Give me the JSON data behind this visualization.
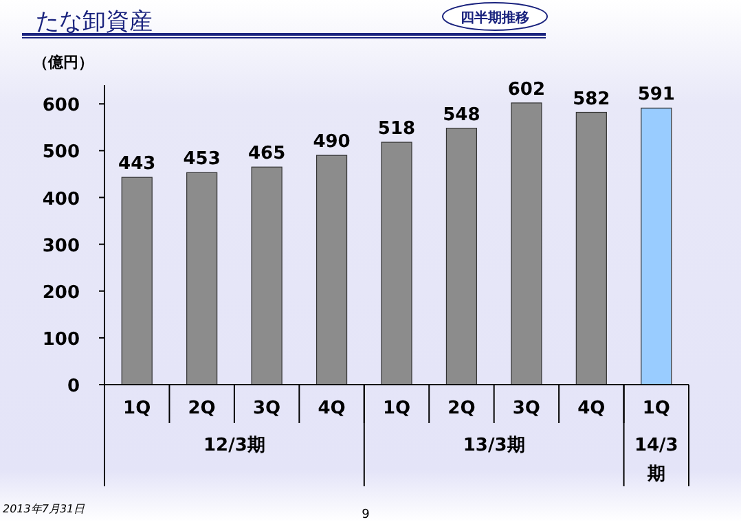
{
  "chart_data": {
    "type": "bar",
    "title": "たな卸資産",
    "subtitle": "四半期推移",
    "ylabel": "（億円）",
    "categories": [
      "1Q",
      "2Q",
      "3Q",
      "4Q",
      "1Q",
      "2Q",
      "3Q",
      "4Q",
      "1Q"
    ],
    "values": [
      443,
      453,
      465,
      490,
      518,
      548,
      602,
      582,
      591
    ],
    "colors": [
      "#8c8c8c",
      "#8c8c8c",
      "#8c8c8c",
      "#8c8c8c",
      "#8c8c8c",
      "#8c8c8c",
      "#8c8c8c",
      "#8c8c8c",
      "#99ccff"
    ],
    "ylim": [
      0,
      640
    ],
    "yticks": [
      0,
      100,
      200,
      300,
      400,
      500,
      600
    ],
    "data_labels": true,
    "annotations": [
      "12/3期",
      "13/3期",
      "14/3期",
      "2013年7月31日",
      "9"
    ]
  }
}
